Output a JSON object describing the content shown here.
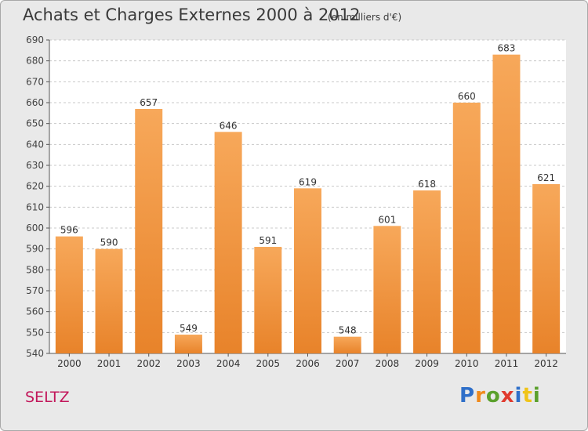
{
  "chart_data": {
    "type": "bar",
    "title": "Achats et Charges Externes 2000 à 2012",
    "subtitle": "(en milliers d'€)",
    "xlabel": "",
    "ylabel": "",
    "categories": [
      "2000",
      "2001",
      "2002",
      "2003",
      "2004",
      "2005",
      "2006",
      "2007",
      "2008",
      "2009",
      "2010",
      "2011",
      "2012"
    ],
    "values": [
      596,
      590,
      657,
      549,
      646,
      591,
      619,
      548,
      601,
      618,
      660,
      683,
      621
    ],
    "ylim": [
      540,
      690
    ],
    "yticks": [
      540,
      550,
      560,
      570,
      580,
      590,
      600,
      610,
      620,
      630,
      640,
      650,
      660,
      670,
      680,
      690
    ],
    "grid": true,
    "data_labels": true,
    "bar_color": "#e8832a",
    "bar_color_light": "#f7a85a"
  },
  "footer": {
    "commune": "SELTZ",
    "logo_letters": [
      {
        "ch": "P",
        "color": "#2f6fc9"
      },
      {
        "ch": "r",
        "color": "#f08a1c"
      },
      {
        "ch": "o",
        "color": "#5aa02c"
      },
      {
        "ch": "x",
        "color": "#e03a2e"
      },
      {
        "ch": "i",
        "color": "#2f6fc9"
      },
      {
        "ch": "t",
        "color": "#f0c419"
      },
      {
        "ch": "i",
        "color": "#5aa02c"
      }
    ]
  }
}
